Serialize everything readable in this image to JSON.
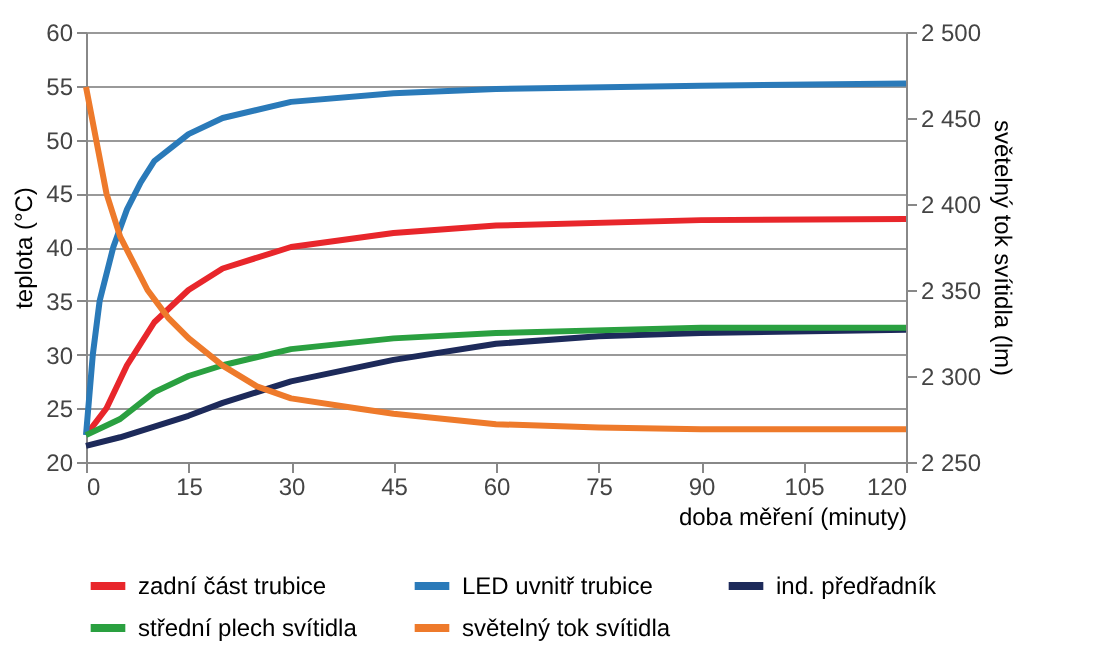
{
  "chart_data": {
    "type": "line",
    "xlabel": "doba měření (minuty)",
    "ylabel": "teplota (°C)",
    "y2label": "světelný tok svítidla (lm)",
    "xlim": [
      0,
      120
    ],
    "xticks": [
      0,
      15,
      30,
      45,
      60,
      75,
      90,
      105,
      120
    ],
    "ylim": [
      20,
      60
    ],
    "yticks": [
      20,
      25,
      30,
      35,
      40,
      45,
      50,
      55,
      60
    ],
    "y2lim": [
      2250,
      2500
    ],
    "y2ticks": [
      {
        "value": 2250,
        "label": "2 250"
      },
      {
        "value": 2300,
        "label": "2 300"
      },
      {
        "value": 2350,
        "label": "2 350"
      },
      {
        "value": 2400,
        "label": "2 400"
      },
      {
        "value": 2450,
        "label": "2 450"
      },
      {
        "value": 2500,
        "label": "2 500"
      }
    ],
    "grid": "y",
    "legend": "bottom",
    "marker": "none",
    "line_style": "solid",
    "series": [
      {
        "name": "zadní část trubice",
        "color": "#e8262b",
        "x": [
          0,
          3,
          6,
          10,
          15,
          20,
          30,
          45,
          60,
          90,
          120
        ],
        "values": [
          22.5,
          25,
          29,
          33,
          36,
          38,
          40,
          41.3,
          42,
          42.5,
          42.6
        ]
      },
      {
        "name": "LED uvnitř trubice",
        "color": "#2a7ab9",
        "x": [
          0,
          1,
          2,
          4,
          6,
          8,
          10,
          15,
          20,
          30,
          45,
          60,
          90,
          120
        ],
        "values": [
          22.5,
          30,
          35,
          40,
          43.5,
          46,
          48,
          50.5,
          52,
          53.5,
          54.3,
          54.7,
          55,
          55.2
        ]
      },
      {
        "name": "ind. předřadník",
        "color": "#1d2a5a",
        "x": [
          0,
          5,
          10,
          15,
          20,
          30,
          45,
          60,
          75,
          90,
          120
        ],
        "values": [
          21.5,
          22.3,
          23.3,
          24.3,
          25.5,
          27.5,
          29.5,
          31,
          31.7,
          32,
          32.3
        ]
      },
      {
        "name": "střední plech svítidla",
        "color": "#2aa040",
        "x": [
          0,
          5,
          10,
          15,
          20,
          30,
          45,
          60,
          90,
          120
        ],
        "values": [
          22.5,
          24,
          26.5,
          28,
          29,
          30.5,
          31.5,
          32,
          32.5,
          32.5
        ]
      },
      {
        "name": "světelný tok svítidla",
        "color": "#ee7a2b",
        "axis": "y2",
        "x": [
          0,
          3,
          5,
          9,
          12,
          15,
          20,
          25,
          30,
          40,
          45,
          60,
          75,
          90,
          120
        ],
        "values": [
          2468,
          2406,
          2381,
          2350,
          2334,
          2322,
          2306,
          2294,
          2287,
          2281,
          2278,
          2272,
          2270,
          2269,
          2269
        ]
      }
    ]
  }
}
